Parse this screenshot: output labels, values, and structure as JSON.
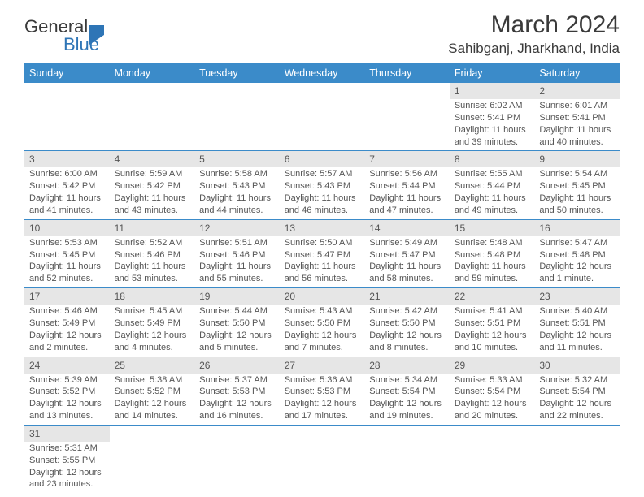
{
  "logo": {
    "word1": "General",
    "word2": "Blue"
  },
  "title": "March 2024",
  "location": "Sahibganj, Jharkhand, India",
  "colors": {
    "header_bg": "#3b8bc9",
    "header_text": "#ffffff",
    "daynum_bg": "#e6e6e6",
    "text": "#555555",
    "rule": "#3b8bc9",
    "logo_blue": "#2e75b6"
  },
  "typography": {
    "title_fontsize": 30,
    "location_fontsize": 17,
    "header_fontsize": 12.5,
    "daynum_fontsize": 12,
    "body_fontsize": 11
  },
  "weekdays": [
    "Sunday",
    "Monday",
    "Tuesday",
    "Wednesday",
    "Thursday",
    "Friday",
    "Saturday"
  ],
  "weeks": [
    [
      null,
      null,
      null,
      null,
      null,
      {
        "n": "1",
        "sr": "Sunrise: 6:02 AM",
        "ss": "Sunset: 5:41 PM",
        "dl": "Daylight: 11 hours and 39 minutes."
      },
      {
        "n": "2",
        "sr": "Sunrise: 6:01 AM",
        "ss": "Sunset: 5:41 PM",
        "dl": "Daylight: 11 hours and 40 minutes."
      }
    ],
    [
      {
        "n": "3",
        "sr": "Sunrise: 6:00 AM",
        "ss": "Sunset: 5:42 PM",
        "dl": "Daylight: 11 hours and 41 minutes."
      },
      {
        "n": "4",
        "sr": "Sunrise: 5:59 AM",
        "ss": "Sunset: 5:42 PM",
        "dl": "Daylight: 11 hours and 43 minutes."
      },
      {
        "n": "5",
        "sr": "Sunrise: 5:58 AM",
        "ss": "Sunset: 5:43 PM",
        "dl": "Daylight: 11 hours and 44 minutes."
      },
      {
        "n": "6",
        "sr": "Sunrise: 5:57 AM",
        "ss": "Sunset: 5:43 PM",
        "dl": "Daylight: 11 hours and 46 minutes."
      },
      {
        "n": "7",
        "sr": "Sunrise: 5:56 AM",
        "ss": "Sunset: 5:44 PM",
        "dl": "Daylight: 11 hours and 47 minutes."
      },
      {
        "n": "8",
        "sr": "Sunrise: 5:55 AM",
        "ss": "Sunset: 5:44 PM",
        "dl": "Daylight: 11 hours and 49 minutes."
      },
      {
        "n": "9",
        "sr": "Sunrise: 5:54 AM",
        "ss": "Sunset: 5:45 PM",
        "dl": "Daylight: 11 hours and 50 minutes."
      }
    ],
    [
      {
        "n": "10",
        "sr": "Sunrise: 5:53 AM",
        "ss": "Sunset: 5:45 PM",
        "dl": "Daylight: 11 hours and 52 minutes."
      },
      {
        "n": "11",
        "sr": "Sunrise: 5:52 AM",
        "ss": "Sunset: 5:46 PM",
        "dl": "Daylight: 11 hours and 53 minutes."
      },
      {
        "n": "12",
        "sr": "Sunrise: 5:51 AM",
        "ss": "Sunset: 5:46 PM",
        "dl": "Daylight: 11 hours and 55 minutes."
      },
      {
        "n": "13",
        "sr": "Sunrise: 5:50 AM",
        "ss": "Sunset: 5:47 PM",
        "dl": "Daylight: 11 hours and 56 minutes."
      },
      {
        "n": "14",
        "sr": "Sunrise: 5:49 AM",
        "ss": "Sunset: 5:47 PM",
        "dl": "Daylight: 11 hours and 58 minutes."
      },
      {
        "n": "15",
        "sr": "Sunrise: 5:48 AM",
        "ss": "Sunset: 5:48 PM",
        "dl": "Daylight: 11 hours and 59 minutes."
      },
      {
        "n": "16",
        "sr": "Sunrise: 5:47 AM",
        "ss": "Sunset: 5:48 PM",
        "dl": "Daylight: 12 hours and 1 minute."
      }
    ],
    [
      {
        "n": "17",
        "sr": "Sunrise: 5:46 AM",
        "ss": "Sunset: 5:49 PM",
        "dl": "Daylight: 12 hours and 2 minutes."
      },
      {
        "n": "18",
        "sr": "Sunrise: 5:45 AM",
        "ss": "Sunset: 5:49 PM",
        "dl": "Daylight: 12 hours and 4 minutes."
      },
      {
        "n": "19",
        "sr": "Sunrise: 5:44 AM",
        "ss": "Sunset: 5:50 PM",
        "dl": "Daylight: 12 hours and 5 minutes."
      },
      {
        "n": "20",
        "sr": "Sunrise: 5:43 AM",
        "ss": "Sunset: 5:50 PM",
        "dl": "Daylight: 12 hours and 7 minutes."
      },
      {
        "n": "21",
        "sr": "Sunrise: 5:42 AM",
        "ss": "Sunset: 5:50 PM",
        "dl": "Daylight: 12 hours and 8 minutes."
      },
      {
        "n": "22",
        "sr": "Sunrise: 5:41 AM",
        "ss": "Sunset: 5:51 PM",
        "dl": "Daylight: 12 hours and 10 minutes."
      },
      {
        "n": "23",
        "sr": "Sunrise: 5:40 AM",
        "ss": "Sunset: 5:51 PM",
        "dl": "Daylight: 12 hours and 11 minutes."
      }
    ],
    [
      {
        "n": "24",
        "sr": "Sunrise: 5:39 AM",
        "ss": "Sunset: 5:52 PM",
        "dl": "Daylight: 12 hours and 13 minutes."
      },
      {
        "n": "25",
        "sr": "Sunrise: 5:38 AM",
        "ss": "Sunset: 5:52 PM",
        "dl": "Daylight: 12 hours and 14 minutes."
      },
      {
        "n": "26",
        "sr": "Sunrise: 5:37 AM",
        "ss": "Sunset: 5:53 PM",
        "dl": "Daylight: 12 hours and 16 minutes."
      },
      {
        "n": "27",
        "sr": "Sunrise: 5:36 AM",
        "ss": "Sunset: 5:53 PM",
        "dl": "Daylight: 12 hours and 17 minutes."
      },
      {
        "n": "28",
        "sr": "Sunrise: 5:34 AM",
        "ss": "Sunset: 5:54 PM",
        "dl": "Daylight: 12 hours and 19 minutes."
      },
      {
        "n": "29",
        "sr": "Sunrise: 5:33 AM",
        "ss": "Sunset: 5:54 PM",
        "dl": "Daylight: 12 hours and 20 minutes."
      },
      {
        "n": "30",
        "sr": "Sunrise: 5:32 AM",
        "ss": "Sunset: 5:54 PM",
        "dl": "Daylight: 12 hours and 22 minutes."
      }
    ],
    [
      {
        "n": "31",
        "sr": "Sunrise: 5:31 AM",
        "ss": "Sunset: 5:55 PM",
        "dl": "Daylight: 12 hours and 23 minutes."
      },
      null,
      null,
      null,
      null,
      null,
      null
    ]
  ]
}
